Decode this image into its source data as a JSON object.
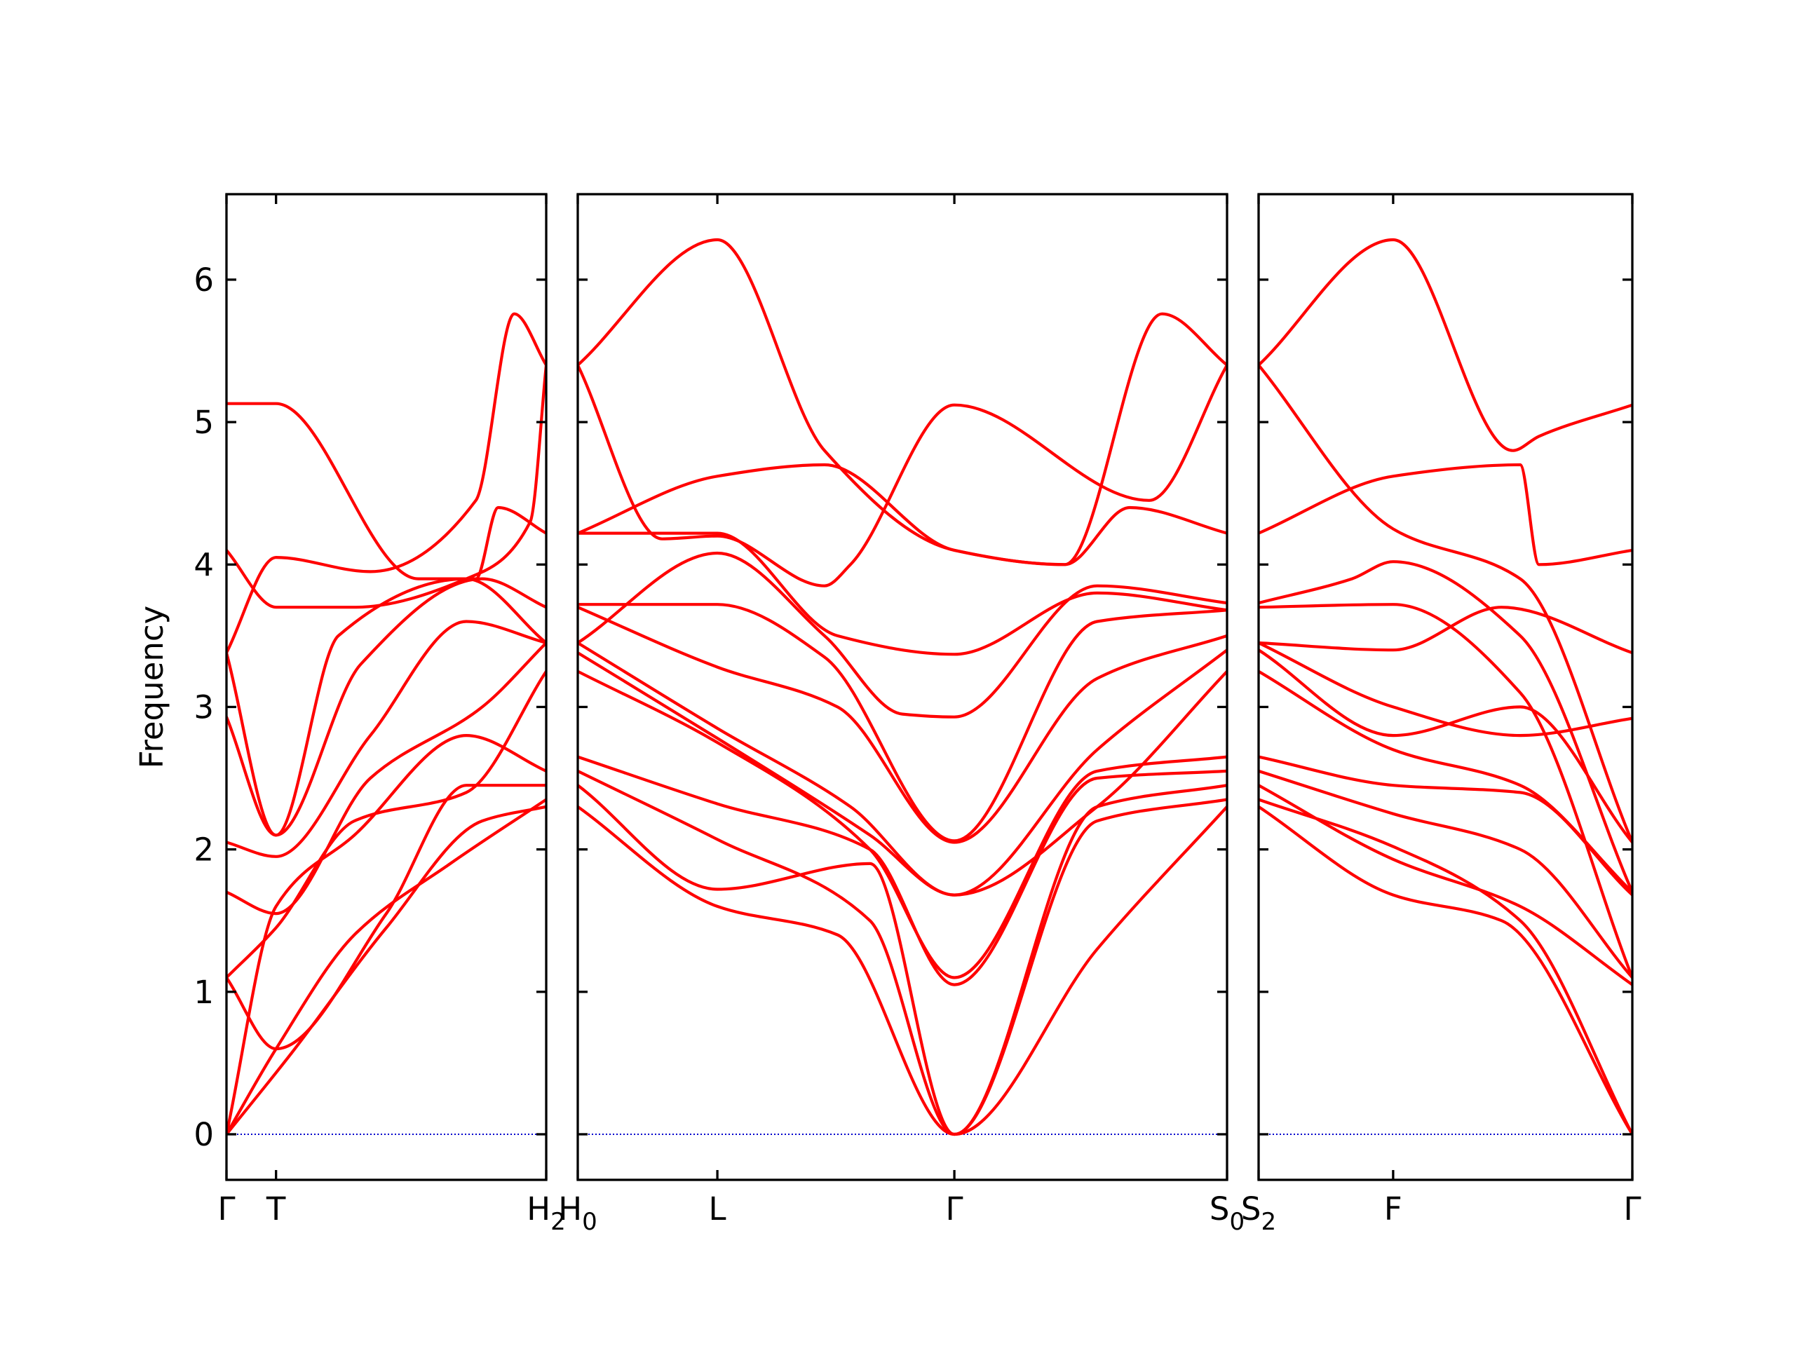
{
  "chart_data": {
    "type": "line",
    "ylabel": "Frequency",
    "ylim": [
      -0.32,
      6.6
    ],
    "yticks": [
      0,
      1,
      2,
      3,
      4,
      5,
      6
    ],
    "colors": {
      "bands": "#ff0000",
      "zero_line": "#0000cc",
      "axes": "#000000"
    },
    "panels": [
      {
        "xlim": [
          0,
          1
        ],
        "xticks": [
          {
            "x": 0,
            "label": "Γ"
          },
          {
            "x": 0.155,
            "label": "T"
          },
          {
            "x": 1,
            "label": "H",
            "sub": "2"
          }
        ],
        "series": [
          {
            "x": [
              0,
              0.155,
              0.4,
              0.7,
              1
            ],
            "y": [
              0,
              0.6,
              1.4,
              1.9,
              2.35
            ]
          },
          {
            "x": [
              0,
              0.2,
              0.5,
              0.8,
              1
            ],
            "y": [
              0,
              0.56,
              1.45,
              2.2,
              2.3
            ]
          },
          {
            "x": [
              0,
              0.155,
              0.5,
              0.75,
              1
            ],
            "y": [
              1.1,
              0.6,
              1.55,
              2.45,
              2.45
            ]
          },
          {
            "x": [
              0,
              0.155,
              0.4,
              0.75,
              1
            ],
            "y": [
              0,
              1.6,
              2.1,
              2.8,
              2.55
            ]
          },
          {
            "x": [
              0,
              0.155,
              0.4,
              0.75,
              1
            ],
            "y": [
              1.1,
              1.45,
              2.2,
              2.4,
              3.25
            ]
          },
          {
            "x": [
              0,
              0.155,
              0.45,
              0.8,
              1
            ],
            "y": [
              1.7,
              1.55,
              2.5,
              3.0,
              3.45
            ]
          },
          {
            "x": [
              0,
              0.155,
              0.45,
              0.75,
              1
            ],
            "y": [
              2.05,
              1.95,
              2.8,
              3.6,
              3.45
            ]
          },
          {
            "x": [
              0,
              0.155,
              0.42,
              0.8,
              1
            ],
            "y": [
              2.93,
              2.1,
              3.3,
              3.9,
              3.7
            ]
          },
          {
            "x": [
              0,
              0.155,
              0.35,
              0.75,
              1
            ],
            "y": [
              3.38,
              2.1,
              3.5,
              3.9,
              3.45
            ]
          },
          {
            "x": [
              0,
              0.155,
              0.4,
              0.75,
              0.95,
              1
            ],
            "y": [
              4.1,
              3.7,
              3.7,
              3.9,
              4.3,
              5.4
            ]
          },
          {
            "x": [
              0,
              0.155,
              0.6,
              0.78,
              0.85,
              1
            ],
            "y": [
              5.13,
              5.13,
              3.9,
              3.9,
              4.4,
              4.22
            ]
          },
          {
            "x": [
              0,
              0.155,
              0.45,
              0.78,
              0.9,
              1
            ],
            "y": [
              3.38,
              4.05,
              3.95,
              4.45,
              5.76,
              5.4
            ]
          }
        ]
      },
      {
        "xlim": [
          0,
          1
        ],
        "xticks": [
          {
            "x": 0,
            "label": "H",
            "sub": "0"
          },
          {
            "x": 0.215,
            "label": "L"
          },
          {
            "x": 0.58,
            "label": "Γ"
          },
          {
            "x": 1,
            "label": "S",
            "sub": "0"
          }
        ],
        "series": [
          {
            "x": [
              0,
              0.215,
              0.4,
              0.58,
              0.8,
              1
            ],
            "y": [
              2.3,
              1.6,
              1.4,
              0,
              1.3,
              2.3
            ]
          },
          {
            "x": [
              0,
              0.215,
              0.45,
              0.58,
              0.8,
              1
            ],
            "y": [
              2.45,
              1.72,
              1.9,
              0,
              2.2,
              2.35
            ]
          },
          {
            "x": [
              0,
              0.215,
              0.45,
              0.58,
              0.8,
              1
            ],
            "y": [
              2.55,
              2.07,
              1.5,
              0,
              2.3,
              2.45
            ]
          },
          {
            "x": [
              0,
              0.215,
              0.45,
              0.58,
              0.8,
              1
            ],
            "y": [
              2.65,
              2.32,
              2.0,
              1.05,
              2.5,
              2.55
            ]
          },
          {
            "x": [
              0,
              0.215,
              0.45,
              0.58,
              0.8,
              1
            ],
            "y": [
              3.25,
              2.75,
              2.0,
              1.1,
              2.55,
              2.65
            ]
          },
          {
            "x": [
              0,
              0.215,
              0.45,
              0.58,
              0.8,
              1
            ],
            "y": [
              3.38,
              2.78,
              2.1,
              1.68,
              2.3,
              3.25
            ]
          },
          {
            "x": [
              0,
              0.215,
              0.42,
              0.58,
              0.8,
              1
            ],
            "y": [
              3.45,
              2.85,
              2.3,
              1.68,
              2.7,
              3.4
            ]
          },
          {
            "x": [
              0,
              0.215,
              0.4,
              0.58,
              0.8,
              1
            ],
            "y": [
              3.7,
              3.28,
              3.0,
              2.05,
              3.2,
              3.5
            ]
          },
          {
            "x": [
              0,
              0.215,
              0.38,
              0.58,
              0.8,
              1
            ],
            "y": [
              3.72,
              3.72,
              3.35,
              2.06,
              3.6,
              3.68
            ]
          },
          {
            "x": [
              0,
              0.215,
              0.38,
              0.5,
              0.58,
              0.8,
              1
            ],
            "y": [
              3.45,
              4.08,
              3.5,
              2.95,
              2.93,
              3.85,
              3.73
            ]
          },
          {
            "x": [
              0,
              0.215,
              0.4,
              0.58,
              0.8,
              1
            ],
            "y": [
              4.22,
              4.22,
              3.5,
              3.37,
              3.8,
              3.68
            ]
          },
          {
            "x": [
              0,
              0.215,
              0.38,
              0.58,
              0.75,
              0.85,
              1
            ],
            "y": [
              4.22,
              4.62,
              4.7,
              4.1,
              4.0,
              4.4,
              4.22
            ]
          },
          {
            "x": [
              0,
              0.13,
              0.215,
              0.38,
              0.42,
              0.58,
              0.88,
              1
            ],
            "y": [
              5.4,
              4.18,
              4.2,
              3.85,
              4.0,
              5.12,
              4.45,
              5.4
            ]
          },
          {
            "x": [
              0,
              0.215,
              0.38,
              0.58,
              0.75,
              0.9,
              1
            ],
            "y": [
              5.4,
              6.28,
              4.8,
              4.1,
              4.0,
              5.76,
              5.4
            ]
          }
        ]
      },
      {
        "xlim": [
          0,
          1
        ],
        "xticks": [
          {
            "x": 0,
            "label": "S",
            "sub": "2"
          },
          {
            "x": 0.36,
            "label": "F"
          },
          {
            "x": 1,
            "label": "Γ"
          }
        ],
        "series": [
          {
            "x": [
              0,
              0.36,
              0.65,
              1
            ],
            "y": [
              2.3,
              1.68,
              1.5,
              0
            ]
          },
          {
            "x": [
              0,
              0.36,
              0.7,
              1
            ],
            "y": [
              2.35,
              2.02,
              1.5,
              0
            ]
          },
          {
            "x": [
              0,
              0.36,
              0.7,
              1
            ],
            "y": [
              2.45,
              1.93,
              1.6,
              1.05
            ]
          },
          {
            "x": [
              0,
              0.36,
              0.7,
              1
            ],
            "y": [
              2.55,
              2.25,
              2.0,
              1.1
            ]
          },
          {
            "x": [
              0,
              0.36,
              0.7,
              1
            ],
            "y": [
              2.65,
              2.45,
              2.4,
              1.68
            ]
          },
          {
            "x": [
              0,
              0.36,
              0.7,
              1
            ],
            "y": [
              3.25,
              2.7,
              2.45,
              1.7
            ]
          },
          {
            "x": [
              0,
              0.36,
              0.7,
              1
            ],
            "y": [
              3.4,
              2.8,
              3.0,
              2.05
            ]
          },
          {
            "x": [
              0,
              0.36,
              0.7,
              1
            ],
            "y": [
              3.45,
              3.0,
              2.8,
              2.92
            ]
          },
          {
            "x": [
              0,
              0.36,
              0.65,
              1
            ],
            "y": [
              3.45,
              3.4,
              3.7,
              3.38
            ]
          },
          {
            "x": [
              0,
              0.36,
              0.7,
              1
            ],
            "y": [
              3.7,
              3.72,
              3.1,
              1.1
            ]
          },
          {
            "x": [
              0,
              0.25,
              0.36,
              0.7,
              1
            ],
            "y": [
              3.73,
              3.9,
              4.02,
              3.5,
              1.7
            ]
          },
          {
            "x": [
              0,
              0.36,
              0.7,
              0.75,
              1
            ],
            "y": [
              4.22,
              4.62,
              4.7,
              4.0,
              4.1
            ]
          },
          {
            "x": [
              0,
              0.36,
              0.7,
              1
            ],
            "y": [
              5.4,
              4.25,
              3.9,
              2.05
            ]
          },
          {
            "x": [
              0,
              0.36,
              0.68,
              0.75,
              1
            ],
            "y": [
              5.4,
              6.28,
              4.8,
              4.9,
              5.12
            ]
          }
        ]
      }
    ]
  }
}
